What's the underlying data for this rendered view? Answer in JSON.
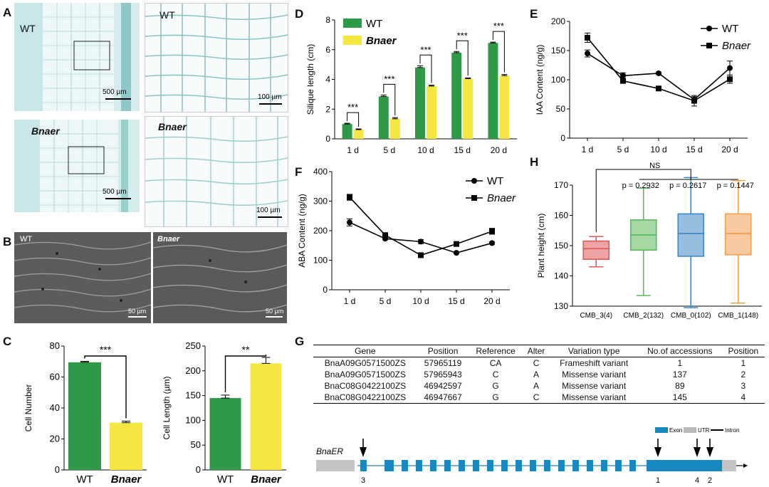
{
  "panels": {
    "A": {
      "label": "A",
      "images": [
        {
          "text": "WT",
          "scale": "500 µm"
        },
        {
          "text": "WT",
          "scale": "100 µm"
        },
        {
          "text": "Bnaer",
          "scale": "500 µm"
        },
        {
          "text": "Bnaer",
          "scale": "100 µm"
        }
      ]
    },
    "B": {
      "label": "B",
      "images": [
        {
          "text": "WT",
          "scale": "50 µm"
        },
        {
          "text": "Bnaer",
          "scale": "50 µm"
        }
      ]
    },
    "C": {
      "label": "C"
    },
    "D": {
      "label": "D"
    },
    "E": {
      "label": "E"
    },
    "F": {
      "label": "F"
    },
    "G": {
      "label": "G"
    },
    "H": {
      "label": "H"
    }
  },
  "colors": {
    "wt": "#2e9a48",
    "mutant": "#f5e642",
    "micro_bg": "#e8f4f4",
    "sem_bg": "#5a5a5a"
  },
  "chart_data": [
    {
      "id": "C1",
      "type": "bar",
      "categories": [
        "WT",
        "Bnaer"
      ],
      "values": [
        69.5,
        30.5
      ],
      "errors": [
        0.6,
        1.0
      ],
      "ylabel": "Cell Number",
      "ylim": [
        0,
        80
      ],
      "yticks": [
        0,
        20,
        40,
        60,
        80
      ],
      "significance": "***"
    },
    {
      "id": "C2",
      "type": "bar",
      "categories": [
        "WT",
        "Bnaer"
      ],
      "values": [
        145,
        215
      ],
      "errors": [
        6,
        12
      ],
      "ylabel": "Cell Length (µm)",
      "ylim": [
        0,
        250
      ],
      "yticks": [
        0,
        50,
        100,
        150,
        200,
        250
      ],
      "significance": "**"
    },
    {
      "id": "D",
      "type": "bar",
      "categories": [
        "1 d",
        "5 d",
        "10 d",
        "15 d",
        "20 d"
      ],
      "series": [
        {
          "name": "WT",
          "values": [
            1.0,
            2.85,
            4.8,
            5.8,
            6.45
          ],
          "errors": [
            0.05,
            0.1,
            0.12,
            0.08,
            0.06
          ]
        },
        {
          "name": "Bnaer",
          "values": [
            0.62,
            1.35,
            3.55,
            4.05,
            4.25
          ],
          "errors": [
            0.05,
            0.08,
            0.06,
            0.05,
            0.08
          ]
        }
      ],
      "ylabel": "Silique length (cm)",
      "ylim": [
        0,
        8
      ],
      "yticks": [
        0,
        2,
        4,
        6,
        8
      ],
      "significance": [
        "***",
        "***",
        "***",
        "***",
        "***"
      ]
    },
    {
      "id": "E",
      "type": "line",
      "x": [
        "1 d",
        "5 d",
        "10 d",
        "15 d",
        "20 d"
      ],
      "series": [
        {
          "name": "WT",
          "values": [
            145,
            107,
            111,
            66,
            120
          ],
          "errors": [
            6,
            5,
            2,
            5,
            12
          ]
        },
        {
          "name": "Bnaer",
          "values": [
            172,
            98,
            85,
            64,
            101
          ],
          "errors": [
            8,
            3,
            2,
            9,
            7
          ]
        }
      ],
      "ylabel": "IAA Content (ng/g)",
      "ylim": [
        0,
        200
      ],
      "yticks": [
        0,
        50,
        100,
        150,
        200
      ],
      "legend": "top-right"
    },
    {
      "id": "F",
      "type": "line",
      "x": [
        "1 d",
        "5 d",
        "10 d",
        "15 d",
        "20 d"
      ],
      "series": [
        {
          "name": "WT",
          "values": [
            228,
            173,
            163,
            125,
            158
          ],
          "errors": [
            12,
            4,
            7,
            3,
            4
          ]
        },
        {
          "name": "Bnaer",
          "values": [
            313,
            185,
            117,
            155,
            198
          ],
          "errors": [
            10,
            5,
            4,
            3,
            10
          ]
        }
      ],
      "ylabel": "ABA Content (ng/g)",
      "ylim": [
        0,
        400
      ],
      "yticks": [
        0,
        100,
        200,
        300,
        400
      ],
      "legend": "top-right"
    },
    {
      "id": "H",
      "type": "box",
      "categories": [
        "CMB_3(4)",
        "CMB_2(132)",
        "CMB_0(102)",
        "CMB_1(148)"
      ],
      "boxes": [
        {
          "min": 143,
          "q1": 145.5,
          "median": 149,
          "q3": 151.5,
          "max": 153
        },
        {
          "min": 133.5,
          "q1": 148.5,
          "median": 153.5,
          "q3": 158.5,
          "max": 169
        },
        {
          "min": 129.5,
          "q1": 146.5,
          "median": 154,
          "q3": 160.5,
          "max": 172.5
        },
        {
          "min": 131,
          "q1": 147,
          "median": 154,
          "q3": 160.5,
          "max": 171.5
        }
      ],
      "colors": [
        "#e05a5a",
        "#5cb85c",
        "#3f88c5",
        "#f0a050"
      ],
      "ylabel": "Plant height (cm)",
      "ylim": [
        130,
        170
      ],
      "yticks": [
        130,
        140,
        150,
        160,
        170
      ],
      "annotations": [
        "NS",
        "p = 0.2932",
        "p = 0.2617",
        "p = 0.1447"
      ]
    }
  ],
  "table": {
    "headers": [
      "Gene",
      "Position",
      "Reference",
      "Alter",
      "Variation type",
      "No.of accessions",
      "Position"
    ],
    "rows": [
      [
        "BnaA09G0571500ZS",
        "57965119",
        "CA",
        "C",
        "Frameshift variant",
        "1",
        "1"
      ],
      [
        "BnaA09G0571500ZS",
        "57965943",
        "C",
        "A",
        "Missense variant",
        "137",
        "2"
      ],
      [
        "BnaC08G0422100ZS",
        "46942597",
        "G",
        "A",
        "Missense variant",
        "89",
        "3"
      ],
      [
        "BnaC08G0422100ZS",
        "46947667",
        "G",
        "C",
        "Missense variant",
        "145",
        "4"
      ]
    ]
  },
  "gene_model": {
    "name": "BnaER",
    "legend": [
      "Exon",
      "UTR",
      "Intron"
    ],
    "markers": [
      "1",
      "2",
      "3",
      "4"
    ]
  }
}
